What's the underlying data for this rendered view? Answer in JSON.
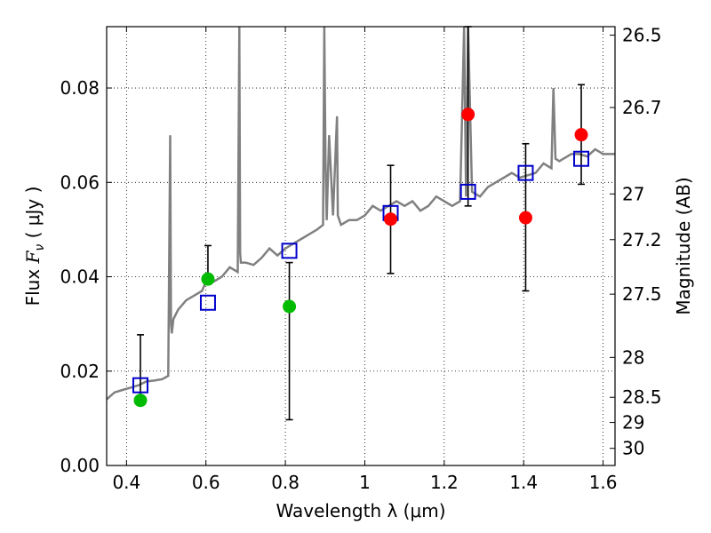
{
  "chart_data": {
    "type": "scatter",
    "xlabel": "Wavelength  λ (μm)",
    "ylabel": "Flux  F_ν  ( μJy )",
    "y2label": "Magnitude (AB)",
    "xlim": [
      0.35,
      1.63
    ],
    "ylim": [
      0.0,
      0.093
    ],
    "x_ticks": [
      0.4,
      0.6,
      0.8,
      1.0,
      1.2,
      1.4,
      1.6
    ],
    "x_tick_labels": [
      "0.4",
      "0.6",
      "0.8",
      "1",
      "1.2",
      "1.4",
      "1.6"
    ],
    "y_ticks": [
      0.0,
      0.02,
      0.04,
      0.06,
      0.08
    ],
    "y_tick_labels": [
      "0.00",
      "0.02",
      "0.04",
      "0.06",
      "0.08"
    ],
    "mag_ticks": [
      "26.5",
      "26.7",
      "27",
      "27.2",
      "27.5",
      "28",
      "28.5",
      "29",
      "30"
    ],
    "grid": true,
    "colors": {
      "template": "#808080",
      "model_points": "#0000cc",
      "optical_points": "#00bb00",
      "nir_points": "#ff0000",
      "errorbars": "#000000"
    },
    "template_spectrum": {
      "x": [
        0.35,
        0.37,
        0.39,
        0.41,
        0.43,
        0.45,
        0.47,
        0.49,
        0.505,
        0.51,
        0.512,
        0.514,
        0.518,
        0.53,
        0.55,
        0.57,
        0.59,
        0.605,
        0.62,
        0.64,
        0.66,
        0.68,
        0.684,
        0.686,
        0.688,
        0.692,
        0.7,
        0.72,
        0.74,
        0.76,
        0.78,
        0.8,
        0.82,
        0.84,
        0.86,
        0.88,
        0.895,
        0.898,
        0.901,
        0.904,
        0.91,
        0.92,
        0.93,
        0.932,
        0.94,
        0.96,
        0.98,
        1.0,
        1.02,
        1.04,
        1.06,
        1.08,
        1.1,
        1.12,
        1.14,
        1.16,
        1.18,
        1.2,
        1.22,
        1.24,
        1.25,
        1.255,
        1.26,
        1.27,
        1.29,
        1.31,
        1.33,
        1.35,
        1.37,
        1.39,
        1.41,
        1.43,
        1.45,
        1.47,
        1.475,
        1.48,
        1.49,
        1.5,
        1.52,
        1.54,
        1.56,
        1.58,
        1.6,
        1.63
      ],
      "y": [
        0.014,
        0.0155,
        0.016,
        0.0165,
        0.017,
        0.0178,
        0.018,
        0.0183,
        0.019,
        0.07,
        0.03,
        0.028,
        0.031,
        0.033,
        0.035,
        0.036,
        0.037,
        0.04,
        0.039,
        0.04,
        0.042,
        0.041,
        0.093,
        0.045,
        0.043,
        0.043,
        0.043,
        0.0425,
        0.044,
        0.046,
        0.0445,
        0.046,
        0.047,
        0.048,
        0.049,
        0.05,
        0.051,
        0.093,
        0.065,
        0.052,
        0.07,
        0.053,
        0.074,
        0.053,
        0.051,
        0.052,
        0.052,
        0.053,
        0.055,
        0.054,
        0.055,
        0.056,
        0.055,
        0.056,
        0.054,
        0.055,
        0.057,
        0.056,
        0.055,
        0.056,
        0.093,
        0.057,
        0.093,
        0.058,
        0.057,
        0.059,
        0.06,
        0.061,
        0.062,
        0.061,
        0.0615,
        0.062,
        0.064,
        0.063,
        0.08,
        0.065,
        0.0645,
        0.065,
        0.066,
        0.066,
        0.0655,
        0.067,
        0.066,
        0.066
      ]
    },
    "series": [
      {
        "marker": "open-square",
        "x": [
          0.435,
          0.605,
          0.81,
          1.065,
          1.26,
          1.405,
          1.545
        ],
        "y": [
          0.017,
          0.0345,
          0.0455,
          0.0535,
          0.058,
          0.062,
          0.065
        ]
      },
      {
        "marker": "filled-circle",
        "x": [
          0.435,
          0.605,
          0.81
        ],
        "y": [
          0.0138,
          0.0395,
          0.0337
        ],
        "yerr_low": [
          0.0138,
          0.0395,
          0.0097
        ],
        "yerr_high": [
          0.0277,
          0.0466,
          0.043
        ]
      },
      {
        "marker": "filled-circle",
        "x": [
          1.065,
          1.26,
          1.405,
          1.545
        ],
        "y": [
          0.0522,
          0.0744,
          0.0525,
          0.0701
        ],
        "yerr_low": [
          0.0407,
          0.055,
          0.037,
          0.0596
        ],
        "yerr_high": [
          0.0636,
          0.093,
          0.0682,
          0.0807
        ]
      }
    ]
  }
}
